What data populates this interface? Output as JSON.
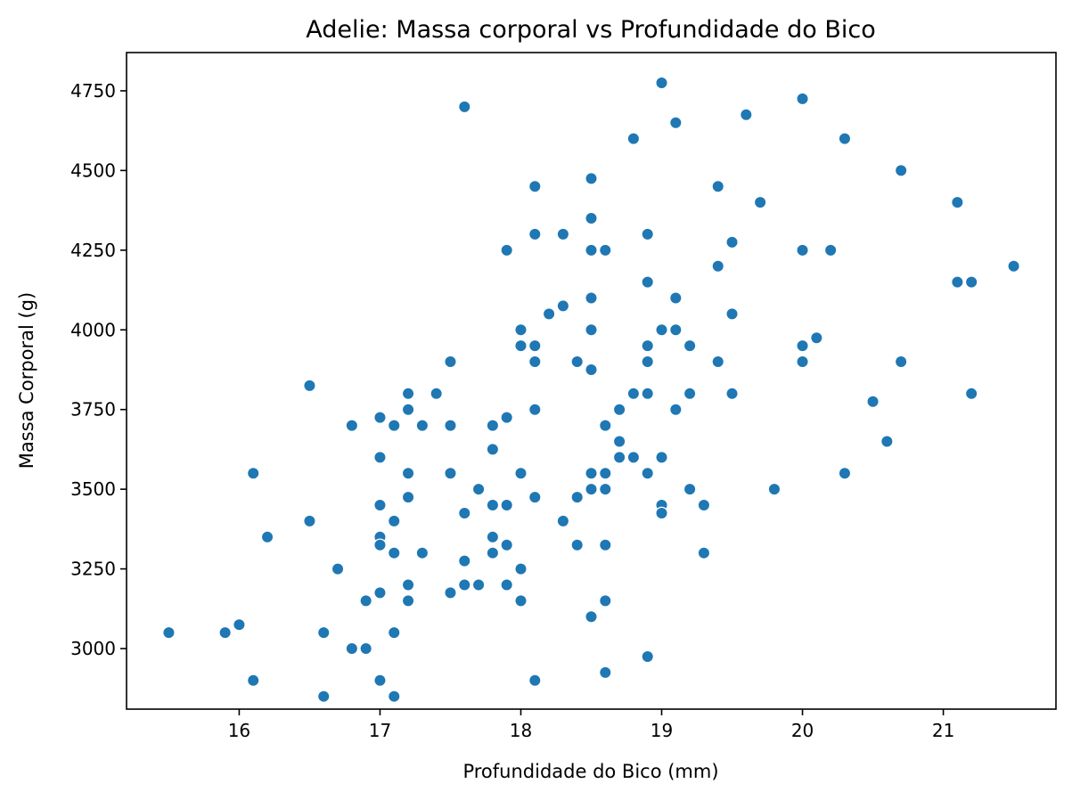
{
  "chart_data": {
    "type": "scatter",
    "title": "Adelie: Massa corporal vs Profundidade do Bico",
    "xlabel": "Profundidade do Bico (mm)",
    "ylabel": "Massa Corporal (g)",
    "xlim": [
      15.2,
      21.8
    ],
    "ylim": [
      2810,
      4870
    ],
    "xticks": [
      16,
      17,
      18,
      19,
      20,
      21
    ],
    "yticks": [
      3000,
      3250,
      3500,
      3750,
      4000,
      4250,
      4500,
      4750
    ],
    "grid": false,
    "marker_color": "#1f77b4",
    "points": [
      [
        19.0,
        4775
      ],
      [
        17.6,
        4700
      ],
      [
        20.0,
        4725
      ],
      [
        19.6,
        4675
      ],
      [
        19.1,
        4650
      ],
      [
        18.8,
        4600
      ],
      [
        20.3,
        4600
      ],
      [
        20.7,
        4500
      ],
      [
        18.1,
        4450
      ],
      [
        18.5,
        4475
      ],
      [
        19.4,
        4450
      ],
      [
        19.7,
        4400
      ],
      [
        21.1,
        4400
      ],
      [
        18.5,
        4350
      ],
      [
        17.9,
        4250
      ],
      [
        18.1,
        4300
      ],
      [
        18.3,
        4300
      ],
      [
        18.5,
        4250
      ],
      [
        18.6,
        4250
      ],
      [
        18.9,
        4300
      ],
      [
        19.5,
        4275
      ],
      [
        20.0,
        4250
      ],
      [
        20.2,
        4250
      ],
      [
        19.4,
        4200
      ],
      [
        21.5,
        4200
      ],
      [
        18.9,
        4150
      ],
      [
        21.1,
        4150
      ],
      [
        21.2,
        4150
      ],
      [
        18.5,
        4100
      ],
      [
        19.1,
        4100
      ],
      [
        18.3,
        4075
      ],
      [
        18.2,
        4050
      ],
      [
        19.5,
        4050
      ],
      [
        18.0,
        4000
      ],
      [
        18.5,
        4000
      ],
      [
        19.0,
        4000
      ],
      [
        19.1,
        4000
      ],
      [
        20.1,
        3975
      ],
      [
        18.0,
        3950
      ],
      [
        18.1,
        3950
      ],
      [
        18.9,
        3950
      ],
      [
        19.2,
        3950
      ],
      [
        20.0,
        3950
      ],
      [
        17.5,
        3900
      ],
      [
        18.1,
        3900
      ],
      [
        18.4,
        3900
      ],
      [
        18.5,
        3875
      ],
      [
        18.9,
        3900
      ],
      [
        19.4,
        3900
      ],
      [
        20.0,
        3900
      ],
      [
        20.7,
        3900
      ],
      [
        16.5,
        3825
      ],
      [
        17.2,
        3800
      ],
      [
        17.4,
        3800
      ],
      [
        18.8,
        3800
      ],
      [
        18.9,
        3800
      ],
      [
        19.2,
        3800
      ],
      [
        19.5,
        3800
      ],
      [
        21.2,
        3800
      ],
      [
        20.5,
        3775
      ],
      [
        17.2,
        3750
      ],
      [
        18.1,
        3750
      ],
      [
        18.7,
        3750
      ],
      [
        19.1,
        3750
      ],
      [
        17.0,
        3725
      ],
      [
        17.9,
        3725
      ],
      [
        16.8,
        3700
      ],
      [
        17.1,
        3700
      ],
      [
        17.3,
        3700
      ],
      [
        17.5,
        3700
      ],
      [
        17.8,
        3700
      ],
      [
        18.6,
        3700
      ],
      [
        18.7,
        3650
      ],
      [
        20.6,
        3650
      ],
      [
        17.8,
        3625
      ],
      [
        17.0,
        3600
      ],
      [
        18.7,
        3600
      ],
      [
        18.8,
        3600
      ],
      [
        19.0,
        3600
      ],
      [
        16.1,
        3550
      ],
      [
        17.2,
        3550
      ],
      [
        17.5,
        3550
      ],
      [
        18.0,
        3550
      ],
      [
        18.5,
        3550
      ],
      [
        18.6,
        3550
      ],
      [
        18.9,
        3550
      ],
      [
        20.3,
        3550
      ],
      [
        17.7,
        3500
      ],
      [
        18.5,
        3500
      ],
      [
        18.6,
        3500
      ],
      [
        19.2,
        3500
      ],
      [
        19.8,
        3500
      ],
      [
        17.2,
        3475
      ],
      [
        18.1,
        3475
      ],
      [
        18.4,
        3475
      ],
      [
        17.0,
        3450
      ],
      [
        17.8,
        3450
      ],
      [
        17.9,
        3450
      ],
      [
        19.0,
        3450
      ],
      [
        19.3,
        3450
      ],
      [
        17.6,
        3425
      ],
      [
        19.0,
        3425
      ],
      [
        16.5,
        3400
      ],
      [
        17.1,
        3400
      ],
      [
        18.3,
        3400
      ],
      [
        16.2,
        3350
      ],
      [
        17.0,
        3350
      ],
      [
        17.8,
        3350
      ],
      [
        17.0,
        3325
      ],
      [
        17.9,
        3325
      ],
      [
        18.4,
        3325
      ],
      [
        18.6,
        3325
      ],
      [
        17.1,
        3300
      ],
      [
        17.3,
        3300
      ],
      [
        17.8,
        3300
      ],
      [
        19.3,
        3300
      ],
      [
        17.6,
        3275
      ],
      [
        16.7,
        3250
      ],
      [
        18.0,
        3250
      ],
      [
        17.2,
        3200
      ],
      [
        17.6,
        3200
      ],
      [
        17.7,
        3200
      ],
      [
        17.9,
        3200
      ],
      [
        17.0,
        3175
      ],
      [
        17.5,
        3175
      ],
      [
        16.9,
        3150
      ],
      [
        17.2,
        3150
      ],
      [
        18.0,
        3150
      ],
      [
        18.6,
        3150
      ],
      [
        18.5,
        3100
      ],
      [
        16.0,
        3075
      ],
      [
        15.5,
        3050
      ],
      [
        15.9,
        3050
      ],
      [
        16.6,
        3050
      ],
      [
        17.1,
        3050
      ],
      [
        16.8,
        3000
      ],
      [
        16.9,
        3000
      ],
      [
        18.9,
        2975
      ],
      [
        18.6,
        2925
      ],
      [
        16.1,
        2900
      ],
      [
        17.0,
        2900
      ],
      [
        18.1,
        2900
      ],
      [
        16.6,
        2850
      ],
      [
        17.1,
        2850
      ]
    ]
  }
}
